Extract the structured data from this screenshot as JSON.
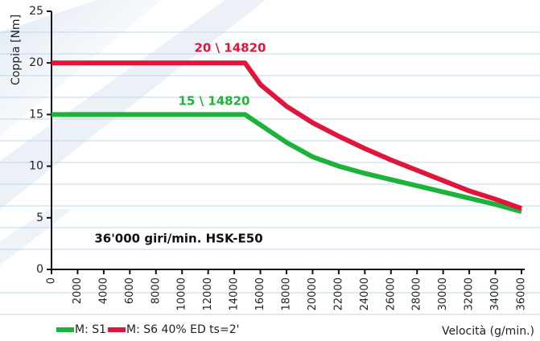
{
  "chart_data": {
    "type": "line",
    "x_label": "Velocità (g/min.)",
    "y_label": "Coppia [Nm]",
    "x": [
      0,
      14820,
      16000,
      18000,
      20000,
      22000,
      24000,
      26000,
      28000,
      30000,
      32000,
      34000,
      36000
    ],
    "series": [
      {
        "name": "M: S1",
        "color": "#1db33a",
        "values": [
          15,
          15,
          14.0,
          12.3,
          10.9,
          10.0,
          9.3,
          8.7,
          8.1,
          7.5,
          6.9,
          6.3,
          5.6
        ]
      },
      {
        "name": "M: S6 40% ED ts=2'",
        "color": "#e0153c",
        "values": [
          20,
          20,
          17.9,
          15.8,
          14.2,
          12.9,
          11.7,
          10.6,
          9.6,
          8.6,
          7.6,
          6.8,
          5.9
        ]
      }
    ],
    "annotations": [
      "20 \\ 14820",
      "15 \\ 14820",
      "36'000 giri/min. HSK-E50"
    ],
    "xlim": [
      0,
      36000
    ],
    "ylim": [
      0,
      25
    ],
    "xticks": [
      0,
      2000,
      4000,
      6000,
      8000,
      10000,
      12000,
      14000,
      16000,
      18000,
      20000,
      22000,
      24000,
      26000,
      28000,
      30000,
      32000,
      34000,
      36000
    ],
    "yticks": [
      0,
      5,
      10,
      15,
      20,
      25
    ],
    "grid": false
  }
}
